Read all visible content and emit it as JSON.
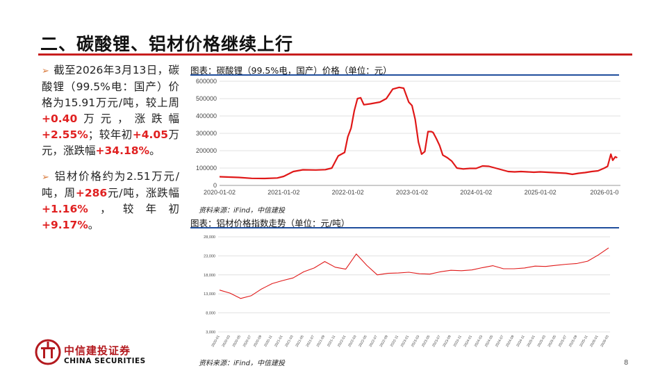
{
  "slide": {
    "title": "二、碳酸锂、铝材价格继续上行",
    "page_number": "8",
    "accent_color": "#c81e1e"
  },
  "bullets": [
    {
      "parts": [
        {
          "text": "截至2026年3月13日，碳酸锂（99.5%电：国产）价格为15.91万元/吨，较上周",
          "red": false
        },
        {
          "text": "+0.40",
          "red": true
        },
        {
          "text": "万元，涨跌幅",
          "red": false
        },
        {
          "text": "+2.55%",
          "red": true
        },
        {
          "text": "；较年初",
          "red": false
        },
        {
          "text": "+4.05",
          "red": true
        },
        {
          "text": "万元，涨跌幅",
          "red": false
        },
        {
          "text": "+34.18%",
          "red": true
        },
        {
          "text": "。",
          "red": false
        }
      ]
    },
    {
      "parts": [
        {
          "text": "铝材价格约为2.51万元/吨，周",
          "red": false
        },
        {
          "text": "+286",
          "red": true
        },
        {
          "text": "元/吨，涨跌幅",
          "red": false
        },
        {
          "text": "+1.16%",
          "red": true
        },
        {
          "text": "，较年初",
          "red": false
        },
        {
          "text": "+9.17%",
          "red": true
        },
        {
          "text": "。",
          "red": false
        }
      ]
    }
  ],
  "logo": {
    "name_cn": "中信建投证券",
    "name_en": "CHINA SECURITIES"
  },
  "chart_data": [
    {
      "type": "line",
      "title": "图表：碳酸锂（99.5%电，国产）价格（单位：元）",
      "source": "资料来源：iFind，中信建投",
      "color": "#e01818",
      "xlabel": "",
      "ylabel": "",
      "ylim": [
        0,
        600000
      ],
      "yticks": [
        0,
        100000,
        200000,
        300000,
        400000,
        500000,
        600000
      ],
      "ytick_labels": [
        "0",
        "100000",
        "200000",
        "300000",
        "400000",
        "500000",
        "600000"
      ],
      "xlim": [
        2020.0,
        2026.25
      ],
      "xticks": [
        2020.0,
        2021.0,
        2022.0,
        2023.0,
        2024.0,
        2025.0,
        2026.0
      ],
      "xtick_labels": [
        "2020-01-02",
        "2021-01-02",
        "2022-01-02",
        "2023-01-02",
        "2024-01-02",
        "2025-01-02",
        "2026-01-0"
      ],
      "x": [
        2020.0,
        2020.3,
        2020.5,
        2020.7,
        2020.9,
        2021.0,
        2021.15,
        2021.3,
        2021.5,
        2021.65,
        2021.75,
        2021.85,
        2021.95,
        2022.0,
        2022.05,
        2022.1,
        2022.15,
        2022.2,
        2022.25,
        2022.35,
        2022.5,
        2022.6,
        2022.7,
        2022.8,
        2022.87,
        2022.95,
        2023.0,
        2023.05,
        2023.1,
        2023.15,
        2023.2,
        2023.25,
        2023.3,
        2023.33,
        2023.38,
        2023.43,
        2023.48,
        2023.55,
        2023.62,
        2023.7,
        2023.8,
        2023.9,
        2024.0,
        2024.1,
        2024.2,
        2024.3,
        2024.4,
        2024.5,
        2024.6,
        2024.7,
        2024.8,
        2024.9,
        2025.0,
        2025.1,
        2025.2,
        2025.3,
        2025.4,
        2025.5,
        2025.6,
        2025.7,
        2025.8,
        2025.9,
        2026.0,
        2026.05,
        2026.1,
        2026.13,
        2026.17,
        2026.2
      ],
      "y": [
        50000,
        46000,
        41000,
        40000,
        43000,
        52000,
        80000,
        90000,
        89000,
        91000,
        100000,
        170000,
        190000,
        280000,
        330000,
        430000,
        500000,
        505000,
        465000,
        470000,
        480000,
        500000,
        555000,
        565000,
        560000,
        480000,
        460000,
        380000,
        250000,
        180000,
        195000,
        310000,
        310000,
        305000,
        270000,
        230000,
        175000,
        160000,
        140000,
        100000,
        95000,
        98000,
        98000,
        112000,
        110000,
        100000,
        90000,
        80000,
        78000,
        80000,
        78000,
        76000,
        78000,
        76000,
        74000,
        72000,
        70000,
        64000,
        70000,
        74000,
        80000,
        84000,
        100000,
        110000,
        180000,
        145000,
        165000,
        159100
      ]
    },
    {
      "type": "line",
      "title": "图表：铝材价格指数走势（单位：元/吨）",
      "source": "资料来源：iFind，中信建投",
      "color": "#e01818",
      "xlabel": "",
      "ylabel": "",
      "ylim": [
        3000,
        28000
      ],
      "yticks": [
        3000,
        8000,
        13000,
        18000,
        23000,
        28000
      ],
      "ytick_labels": [
        "3,000",
        "8,000",
        "13,000",
        "18,000",
        "23,000",
        "28,000"
      ],
      "xtick_labels": [
        "2020-01",
        "2020-03",
        "2020-05",
        "2020-07",
        "2020-09",
        "2020-11",
        "2021-01",
        "2021-03",
        "2021-05",
        "2021-07",
        "2021-09",
        "2021-11",
        "2022-01",
        "2022-03",
        "2022-05",
        "2022-07",
        "2022-09",
        "2022-11",
        "2023-01",
        "2023-03",
        "2023-05",
        "2023-07",
        "2023-09",
        "2023-11",
        "2024-01",
        "2024-03",
        "2024-05",
        "2024-07",
        "2024-09",
        "2024-11",
        "2025-01",
        "2025-03",
        "2025-05",
        "2025-07",
        "2025-09",
        "2025-11",
        "2026-01",
        "2026-03"
      ],
      "x": [
        0,
        1,
        2,
        3,
        4,
        5,
        6,
        7,
        8,
        9,
        10,
        11,
        12,
        13,
        14,
        15,
        16,
        17,
        18,
        19,
        20,
        21,
        22,
        23,
        24,
        25,
        26,
        27,
        28,
        29,
        30,
        31,
        32,
        33,
        34,
        35,
        36,
        37
      ],
      "y": [
        14000,
        13200,
        11800,
        12500,
        14300,
        15700,
        16500,
        17200,
        18800,
        19800,
        21500,
        20000,
        19500,
        23500,
        20500,
        18000,
        18400,
        18500,
        18700,
        18300,
        18200,
        18800,
        19200,
        19100,
        19300,
        19900,
        20400,
        19600,
        19600,
        19800,
        20300,
        20200,
        20500,
        20800,
        21000,
        21600,
        23200,
        25100
      ]
    }
  ]
}
